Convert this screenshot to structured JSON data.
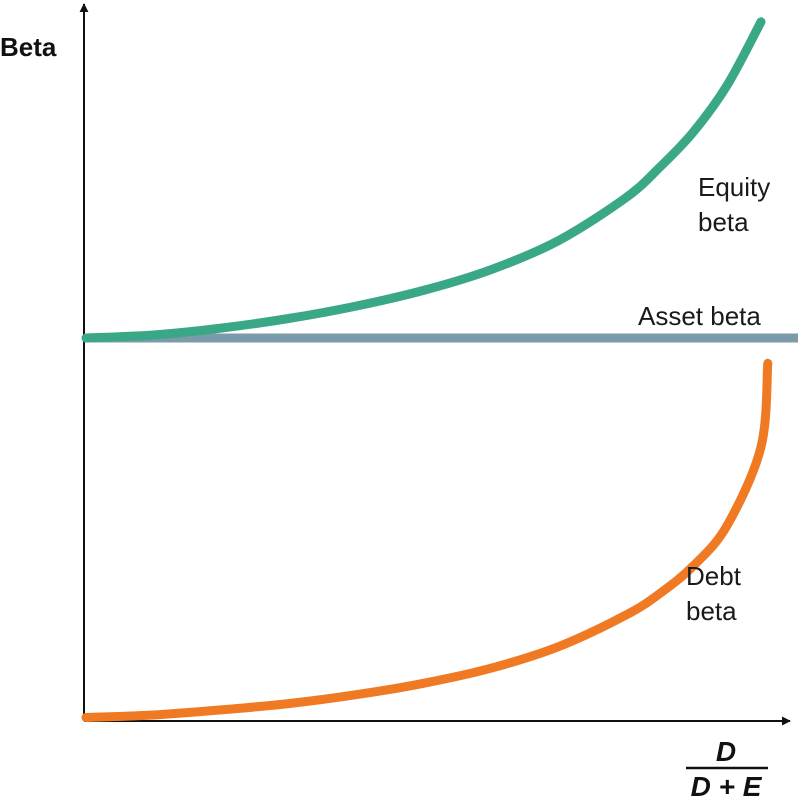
{
  "chart_data": {
    "type": "line",
    "ylabel": "Beta",
    "xlabel": {
      "numerator": "D",
      "denominator": "D + E"
    },
    "colors": {
      "axis": "#111111",
      "equity": "#3aa886",
      "asset": "#7b9bab",
      "debt": "#f07a24"
    },
    "series": [
      {
        "key": "equity",
        "label_lines": [
          "Equity",
          "beta"
        ],
        "x": [
          0,
          0.1,
          0.2,
          0.3,
          0.4,
          0.5,
          0.6,
          0.7,
          0.8,
          0.85,
          0.9,
          0.95,
          1.0
        ],
        "y": [
          0,
          0.012,
          0.039,
          0.077,
          0.126,
          0.188,
          0.27,
          0.385,
          0.555,
          0.675,
          0.815,
          1.0,
          1.25
        ]
      },
      {
        "key": "asset",
        "label_lines": [
          "Asset beta"
        ],
        "x": [
          0,
          1.07
        ],
        "y": [
          0,
          0
        ]
      },
      {
        "key": "debt",
        "label_lines": [
          "Debt",
          "beta"
        ],
        "x": [
          0,
          0.1,
          0.2,
          0.3,
          0.4,
          0.5,
          0.6,
          0.7,
          0.8,
          0.85,
          0.9,
          0.95,
          1.0,
          1.01
        ],
        "y": [
          -1.5,
          -1.49,
          -1.47,
          -1.445,
          -1.41,
          -1.365,
          -1.305,
          -1.22,
          -1.095,
          -1.01,
          -0.9,
          -0.74,
          -0.43,
          -0.1
        ]
      }
    ]
  }
}
